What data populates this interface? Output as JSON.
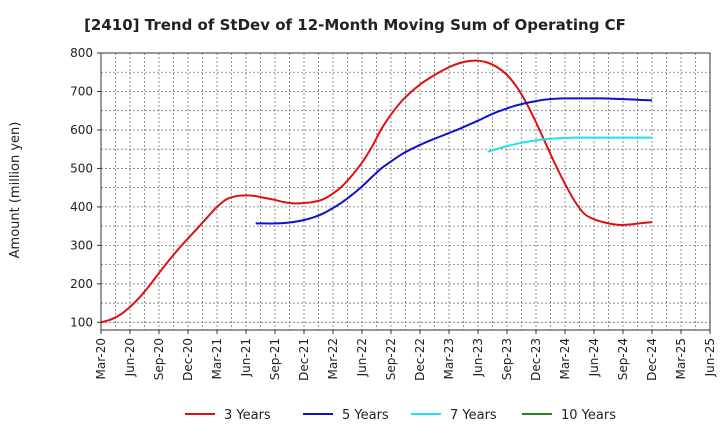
{
  "chart_data": {
    "type": "line",
    "title": "[2410]  Trend of StDev of 12-Month Moving Sum of Operating CF",
    "xlabel": "",
    "ylabel": "Amount (million yen)",
    "ylim": [
      80,
      800
    ],
    "yticks": [
      100,
      200,
      300,
      400,
      500,
      600,
      700,
      800
    ],
    "x_ticks": [
      "Mar-20",
      "Jun-20",
      "Sep-20",
      "Dec-20",
      "Mar-21",
      "Jun-21",
      "Sep-21",
      "Dec-21",
      "Mar-22",
      "Jun-22",
      "Sep-22",
      "Dec-22",
      "Mar-23",
      "Jun-23",
      "Sep-23",
      "Dec-23",
      "Mar-24",
      "Jun-24",
      "Sep-24",
      "Dec-24",
      "Mar-25",
      "Jun-25"
    ],
    "grid": true,
    "legend_position": "bottom",
    "series": [
      {
        "name": "3 Years",
        "color": "#dd1111",
        "points": [
          [
            "Mar-20",
            100
          ],
          [
            "Apr-20",
            107
          ],
          [
            "May-20",
            120
          ],
          [
            "Jun-20",
            140
          ],
          [
            "Jul-20",
            165
          ],
          [
            "Aug-20",
            195
          ],
          [
            "Sep-20",
            228
          ],
          [
            "Oct-20",
            260
          ],
          [
            "Nov-20",
            290
          ],
          [
            "Dec-20",
            318
          ],
          [
            "Jan-21",
            345
          ],
          [
            "Feb-21",
            373
          ],
          [
            "Mar-21",
            400
          ],
          [
            "Apr-21",
            420
          ],
          [
            "May-21",
            428
          ],
          [
            "Jun-21",
            430
          ],
          [
            "Jul-21",
            428
          ],
          [
            "Aug-21",
            423
          ],
          [
            "Sep-21",
            418
          ],
          [
            "Oct-21",
            412
          ],
          [
            "Nov-21",
            409
          ],
          [
            "Dec-21",
            410
          ],
          [
            "Jan-22",
            413
          ],
          [
            "Feb-22",
            420
          ],
          [
            "Mar-22",
            435
          ],
          [
            "Apr-22",
            455
          ],
          [
            "May-22",
            483
          ],
          [
            "Jun-22",
            515
          ],
          [
            "Jul-22",
            555
          ],
          [
            "Aug-22",
            602
          ],
          [
            "Sep-22",
            640
          ],
          [
            "Oct-22",
            672
          ],
          [
            "Nov-22",
            697
          ],
          [
            "Dec-22",
            718
          ],
          [
            "Jan-23",
            735
          ],
          [
            "Feb-23",
            750
          ],
          [
            "Mar-23",
            763
          ],
          [
            "Apr-23",
            773
          ],
          [
            "May-23",
            779
          ],
          [
            "Jun-23",
            780
          ],
          [
            "Jul-23",
            775
          ],
          [
            "Aug-23",
            763
          ],
          [
            "Sep-23",
            743
          ],
          [
            "Oct-23",
            712
          ],
          [
            "Nov-23",
            670
          ],
          [
            "Dec-23",
            620
          ],
          [
            "Jan-24",
            565
          ],
          [
            "Feb-24",
            510
          ],
          [
            "Mar-24",
            460
          ],
          [
            "Apr-24",
            415
          ],
          [
            "May-24",
            382
          ],
          [
            "Jun-24",
            368
          ],
          [
            "Jul-24",
            360
          ],
          [
            "Aug-24",
            355
          ],
          [
            "Sep-24",
            353
          ],
          [
            "Oct-24",
            355
          ],
          [
            "Nov-24",
            358
          ],
          [
            "Dec-24",
            360
          ]
        ]
      },
      {
        "name": "5 Years",
        "color": "#1111cc",
        "points": [
          [
            "Jul-21",
            357
          ],
          [
            "Aug-21",
            357
          ],
          [
            "Sep-21",
            357
          ],
          [
            "Oct-21",
            358
          ],
          [
            "Nov-21",
            361
          ],
          [
            "Dec-21",
            366
          ],
          [
            "Jan-22",
            373
          ],
          [
            "Feb-22",
            383
          ],
          [
            "Mar-22",
            397
          ],
          [
            "Apr-22",
            413
          ],
          [
            "May-22",
            432
          ],
          [
            "Jun-22",
            453
          ],
          [
            "Jul-22",
            477
          ],
          [
            "Aug-22",
            500
          ],
          [
            "Sep-22",
            518
          ],
          [
            "Oct-22",
            535
          ],
          [
            "Nov-22",
            549
          ],
          [
            "Dec-22",
            561
          ],
          [
            "Jan-23",
            572
          ],
          [
            "Feb-23",
            582
          ],
          [
            "Mar-23",
            592
          ],
          [
            "Apr-23",
            602
          ],
          [
            "May-23",
            613
          ],
          [
            "Jun-23",
            624
          ],
          [
            "Jul-23",
            636
          ],
          [
            "Aug-23",
            647
          ],
          [
            "Sep-23",
            656
          ],
          [
            "Oct-23",
            664
          ],
          [
            "Nov-23",
            670
          ],
          [
            "Dec-23",
            675
          ],
          [
            "Jan-24",
            679
          ],
          [
            "Feb-24",
            681
          ],
          [
            "Mar-24",
            682
          ],
          [
            "Apr-24",
            682
          ],
          [
            "May-24",
            682
          ],
          [
            "Jun-24",
            682
          ],
          [
            "Jul-24",
            682
          ],
          [
            "Aug-24",
            681
          ],
          [
            "Sep-24",
            680
          ],
          [
            "Oct-24",
            679
          ],
          [
            "Nov-24",
            678
          ],
          [
            "Dec-24",
            677
          ]
        ]
      },
      {
        "name": "7 Years",
        "color": "#22e0ee",
        "points": [
          [
            "Jul-23",
            543
          ],
          [
            "Aug-23",
            551
          ],
          [
            "Sep-23",
            558
          ],
          [
            "Oct-23",
            564
          ],
          [
            "Nov-23",
            569
          ],
          [
            "Dec-23",
            573
          ],
          [
            "Jan-24",
            576
          ],
          [
            "Feb-24",
            578
          ],
          [
            "Mar-24",
            579
          ],
          [
            "Apr-24",
            580
          ],
          [
            "May-24",
            580
          ],
          [
            "Jun-24",
            580
          ],
          [
            "Jul-24",
            580
          ],
          [
            "Aug-24",
            580
          ],
          [
            "Sep-24",
            580
          ],
          [
            "Oct-24",
            580
          ],
          [
            "Nov-24",
            580
          ],
          [
            "Dec-24",
            580
          ]
        ]
      },
      {
        "name": "10 Years",
        "color": "#228822",
        "points": []
      }
    ]
  }
}
